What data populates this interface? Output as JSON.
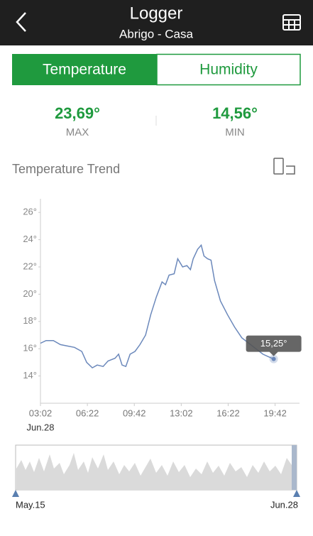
{
  "header": {
    "title": "Logger",
    "subtitle": "Abrigo - Casa"
  },
  "tabs": [
    "Temperature",
    "Humidity"
  ],
  "stats": [
    {
      "value": "23,69°",
      "label": "MAX"
    },
    {
      "value": "14,56°",
      "label": "MIN"
    }
  ],
  "navigator": {
    "start": "May.15",
    "end": "Jun.28"
  },
  "chart_data": {
    "type": "line",
    "title": "Temperature Trend",
    "xlabel": "Jun.28",
    "color": "#6b88bb",
    "x": [
      "03:02",
      "03:26",
      "03:57",
      "04:27",
      "04:57",
      "05:27",
      "05:58",
      "06:19",
      "06:43",
      "07:04",
      "07:29",
      "07:50",
      "08:20",
      "08:35",
      "08:50",
      "09:06",
      "09:24",
      "09:45",
      "10:06",
      "10:30",
      "10:52",
      "11:16",
      "11:40",
      "11:55",
      "12:10",
      "12:32",
      "12:47",
      "13:08",
      "13:26",
      "13:41",
      "13:53",
      "14:12",
      "14:27",
      "14:39",
      "14:54",
      "15:09",
      "15:24",
      "15:49",
      "16:19",
      "16:49",
      "17:20",
      "17:50",
      "18:20",
      "18:50",
      "19:15",
      "19:36"
    ],
    "values": [
      16.4,
      16.6,
      16.6,
      16.3,
      16.2,
      16.1,
      15.8,
      15.0,
      14.6,
      14.8,
      14.7,
      15.1,
      15.3,
      15.6,
      14.8,
      14.7,
      15.6,
      15.8,
      16.3,
      17.0,
      18.5,
      19.8,
      20.9,
      20.7,
      21.4,
      21.5,
      22.6,
      22.0,
      22.1,
      21.8,
      22.6,
      23.3,
      23.6,
      22.8,
      22.6,
      22.5,
      21.0,
      19.5,
      18.5,
      17.6,
      16.8,
      16.4,
      16.0,
      15.6,
      15.4,
      15.25
    ],
    "value_labels": [
      null,
      null,
      null,
      null,
      null,
      null,
      null,
      null,
      null,
      null,
      null,
      null,
      null,
      null,
      null,
      null,
      null,
      null,
      null,
      null,
      null,
      null,
      null,
      null,
      null,
      null,
      null,
      null,
      null,
      null,
      null,
      null,
      null,
      null,
      null,
      null,
      null,
      null,
      null,
      null,
      null,
      null,
      null,
      null,
      null,
      "15,25°"
    ],
    "xlim": [
      "03:02",
      "21:20"
    ],
    "xticks": [
      "03:02",
      "06:22",
      "09:42",
      "13:02",
      "16:22",
      "19:42"
    ],
    "ylim": [
      12,
      27
    ],
    "yticks": [
      {
        "value": 14,
        "label": "14°"
      },
      {
        "value": 16,
        "label": "16°"
      },
      {
        "value": 18,
        "label": "18°"
      },
      {
        "value": 20,
        "label": "20°"
      },
      {
        "value": 22,
        "label": "22°"
      },
      {
        "value": 24,
        "label": "24°"
      },
      {
        "value": 26,
        "label": "26°"
      }
    ]
  }
}
